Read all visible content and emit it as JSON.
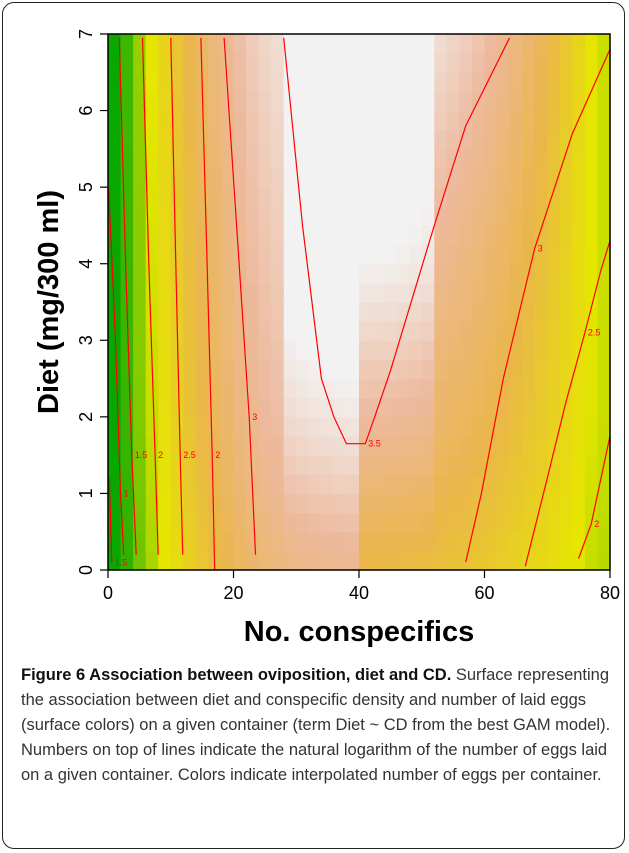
{
  "chart_data": {
    "type": "heatmap",
    "xlabel": "No. conspecifics",
    "ylabel": "Diet (mg/300 ml)",
    "xlim": [
      0,
      80
    ],
    "ylim": [
      0,
      7
    ],
    "x_ticks": [
      "0",
      "20",
      "40",
      "60",
      "80"
    ],
    "y_ticks": [
      "0",
      "1",
      "2",
      "3",
      "4",
      "5",
      "6",
      "7"
    ],
    "colormap": [
      "#00a600",
      "#e6e600",
      "#eab64a",
      "#edb99d",
      "#f2f2f2"
    ],
    "contour_color": "#ff0000",
    "contours": [
      {
        "label": "1.5",
        "points": [
          [
            0.2,
            1.2
          ],
          [
            0.6,
            0.1
          ]
        ]
      },
      {
        "label": "1",
        "points": [
          [
            0.1,
            5.0
          ],
          [
            1.2,
            3.0
          ],
          [
            2.0,
            1.0
          ],
          [
            2.5,
            0.2
          ]
        ]
      },
      {
        "label": "1.5",
        "points": [
          [
            1.8,
            6.95
          ],
          [
            2.8,
            4.0
          ],
          [
            3.8,
            1.5
          ],
          [
            4.5,
            0.2
          ]
        ]
      },
      {
        "label": "2",
        "points": [
          [
            5.5,
            6.95
          ],
          [
            6.5,
            4.0
          ],
          [
            7.5,
            1.5
          ],
          [
            8.0,
            0.2
          ]
        ]
      },
      {
        "label": "2.5",
        "points": [
          [
            10.0,
            6.95
          ],
          [
            10.8,
            4.0
          ],
          [
            11.5,
            1.5
          ],
          [
            11.9,
            0.2
          ]
        ]
      },
      {
        "label": "2",
        "points": [
          [
            14.8,
            6.95
          ],
          [
            15.8,
            4.0
          ],
          [
            16.6,
            1.5
          ],
          [
            17.0,
            0.0
          ]
        ]
      },
      {
        "label": "3",
        "points": [
          [
            18.5,
            6.95
          ],
          [
            20.5,
            4.5
          ],
          [
            22.5,
            2.0
          ],
          [
            23.5,
            0.2
          ]
        ]
      },
      {
        "label": "3.5",
        "points": [
          [
            28.0,
            6.95
          ],
          [
            31.0,
            4.5
          ],
          [
            34.0,
            2.5
          ],
          [
            36.0,
            2.0
          ],
          [
            38.0,
            1.65
          ],
          [
            41.0,
            1.65
          ],
          [
            42.5,
            2.0
          ],
          [
            45.0,
            2.6
          ],
          [
            52.0,
            4.5
          ],
          [
            57.0,
            5.8
          ],
          [
            64.0,
            6.95
          ]
        ]
      },
      {
        "label": "3",
        "points": [
          [
            57.0,
            0.1
          ],
          [
            59.5,
            1.0
          ],
          [
            63.0,
            2.5
          ],
          [
            68.0,
            4.2
          ],
          [
            74.0,
            5.7
          ],
          [
            80.0,
            6.8
          ]
        ]
      },
      {
        "label": "2.5",
        "points": [
          [
            66.5,
            0.05
          ],
          [
            70.0,
            1.2
          ],
          [
            73.0,
            2.2
          ],
          [
            76.0,
            3.1
          ],
          [
            78.5,
            3.9
          ],
          [
            80.0,
            4.3
          ]
        ]
      },
      {
        "label": "2",
        "points": [
          [
            75.0,
            0.15
          ],
          [
            77.0,
            0.6
          ],
          [
            80.0,
            1.75
          ]
        ]
      }
    ]
  },
  "caption": {
    "title": "Figure 6 Association between oviposition, diet and CD.",
    "text": " Surface representing the association between diet and conspecific density and number of laid eggs (surface colors) on a given container (term Diet ~ CD from the best GAM model). Numbers on top of lines indicate the natural logarithm of the number of eggs laid on a given container. Colors indicate interpolated number of eggs per container."
  }
}
